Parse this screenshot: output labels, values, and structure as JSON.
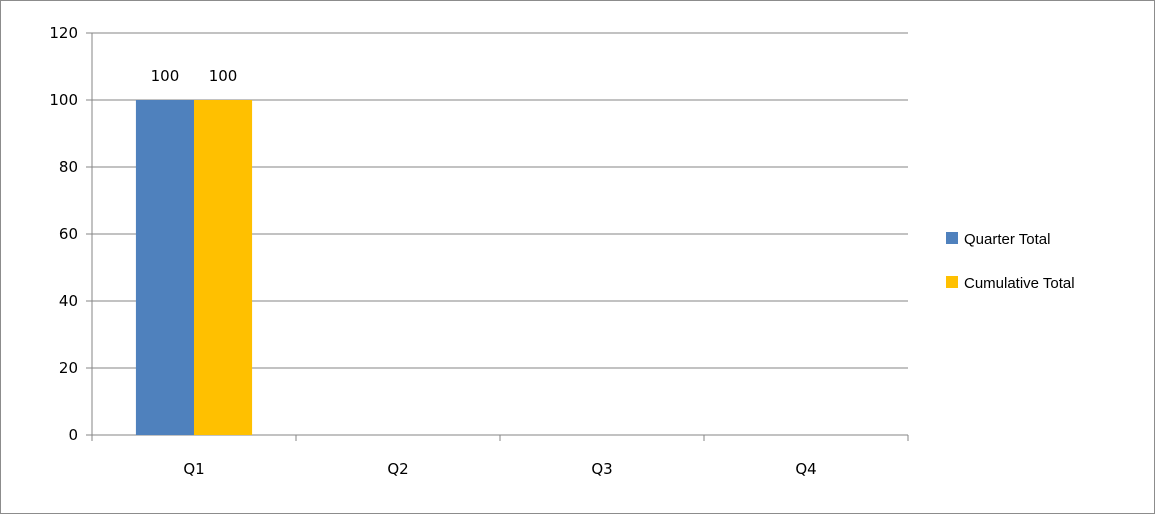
{
  "chart_data": {
    "type": "bar",
    "categories": [
      "Q1",
      "Q2",
      "Q3",
      "Q4"
    ],
    "series": [
      {
        "name": "Quarter Total",
        "values": [
          100,
          null,
          null,
          null
        ],
        "color": "#4f81bd"
      },
      {
        "name": "Cumulative Total",
        "values": [
          100,
          null,
          null,
          null
        ],
        "color": "#ffc000"
      }
    ],
    "title": "",
    "xlabel": "",
    "ylabel": "",
    "ylim": [
      0,
      120
    ],
    "yticks": [
      0,
      20,
      40,
      60,
      80,
      100,
      120
    ],
    "grid": true,
    "legend_position": "right",
    "data_labels": true
  }
}
